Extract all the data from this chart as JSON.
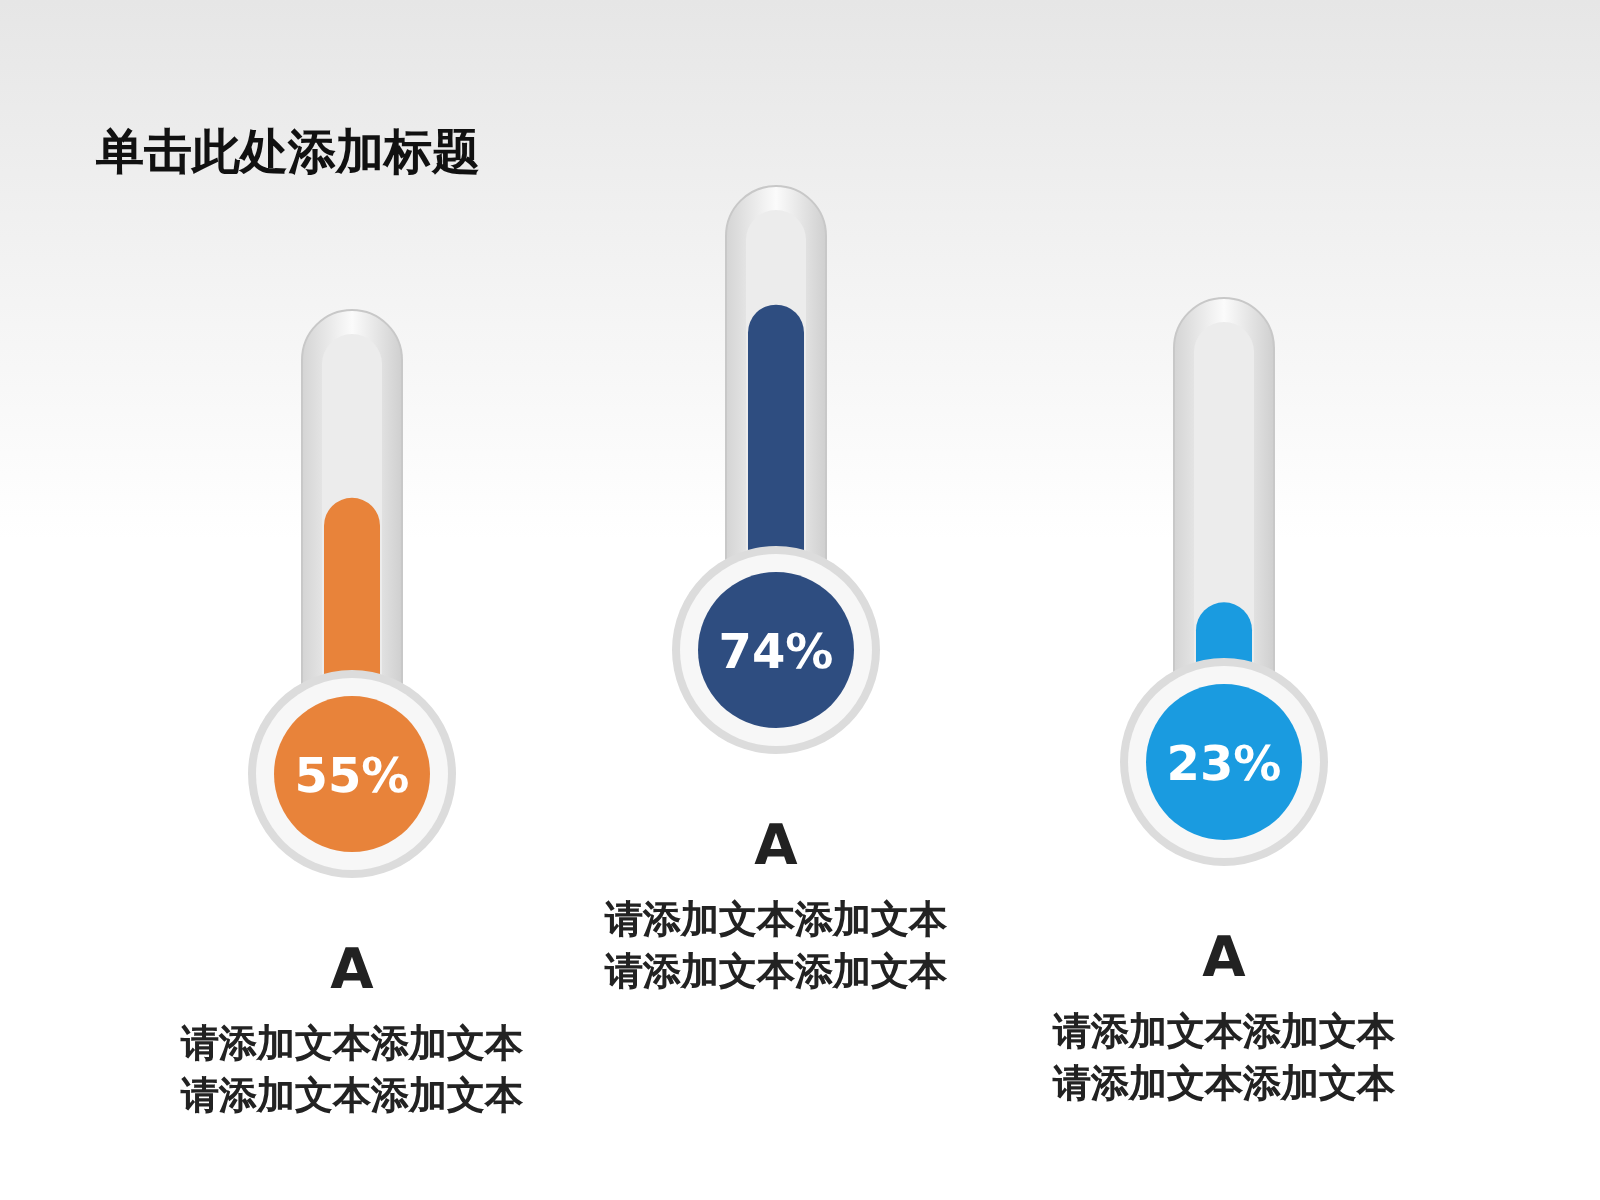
{
  "chart_data": {
    "type": "other",
    "title": "单击此处添加标题",
    "categories": [
      "A",
      "A",
      "A"
    ],
    "values": [
      55,
      74,
      23
    ],
    "value_labels": [
      "55%",
      "74%",
      "23%"
    ],
    "colors": [
      "#e8833a",
      "#2e4d80",
      "#1a9be0"
    ],
    "annotations": [
      "请添加文本添加文本",
      "请添加文本添加文本",
      "请添加文本添加文本",
      "请添加文本添加文本",
      "请添加文本添加文本",
      "请添加文本添加文本"
    ]
  }
}
